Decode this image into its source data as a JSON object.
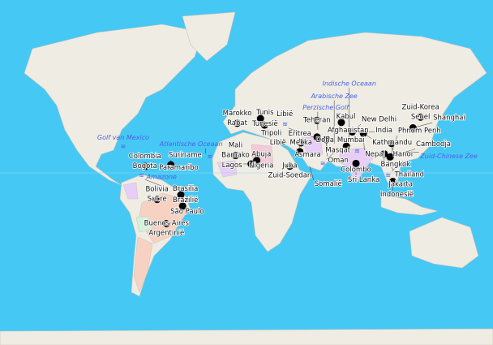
{
  "colors": {
    "ocean": "#46c8f5",
    "land": "#efece4",
    "marker": "#000000",
    "sea_label": "#4a63e8",
    "highlight_pink": "#f4c9d8",
    "highlight_salmon": "#f7d2c2",
    "highlight_purple": "#e8cdf7",
    "highlight_green": "#d4f2dd"
  },
  "markers": [
    {
      "name": "Rabat",
      "country": "Marokko",
      "lon": -6.8,
      "lat": 34.0
    },
    {
      "name": "Tunis",
      "country": "Tunesië",
      "lon": 10.2,
      "lat": 36.8
    },
    {
      "name": "Tripoli",
      "country": "Libië",
      "lon": 13.2,
      "lat": 32.9
    },
    {
      "name": "Bamako",
      "country": "Mali",
      "lon": -8.0,
      "lat": 12.6
    },
    {
      "name": "Abuja",
      "country": "Nigeria",
      "lon": 7.5,
      "lat": 9.1
    },
    {
      "name": "Lagos",
      "country": "",
      "lon": 3.4,
      "lat": 6.5
    },
    {
      "name": "Juba",
      "country": "Zuid-Soedan",
      "lon": 31.6,
      "lat": 4.9
    },
    {
      "name": "Mekka",
      "country": "",
      "lon": 39.8,
      "lat": 21.4
    },
    {
      "name": "Asmara",
      "country": "Eritrea",
      "lon": 38.9,
      "lat": 15.3
    },
    {
      "name": "Teheran",
      "country": "",
      "lon": 51.4,
      "lat": 35.7
    },
    {
      "name": "Kabul",
      "country": "Afghanistan",
      "lon": 69.2,
      "lat": 34.5
    },
    {
      "name": "Doha",
      "country": "",
      "lon": 51.5,
      "lat": 25.3
    },
    {
      "name": "Masqat",
      "country": "Oman",
      "lon": 58.4,
      "lat": 23.6
    },
    {
      "name": "Mumbai",
      "country": "",
      "lon": 72.9,
      "lat": 19.1
    },
    {
      "name": "New Delhi",
      "country": "India",
      "lon": 77.2,
      "lat": 28.6
    },
    {
      "name": "Kathmandu",
      "country": "Nepal",
      "lon": 85.3,
      "lat": 27.7
    },
    {
      "name": "Colombo",
      "country": "Sri Lanka",
      "lon": 79.9,
      "lat": 6.9
    },
    {
      "name": "Hanoi",
      "country": "",
      "lon": 105.8,
      "lat": 21.0
    },
    {
      "name": "Bangkok",
      "country": "Thailand",
      "lon": 100.5,
      "lat": 13.8
    },
    {
      "name": "Phnom Penh",
      "country": "Cambodja",
      "lon": 104.9,
      "lat": 11.6
    },
    {
      "name": "Seoel",
      "country": "Zuid-Korea",
      "lon": 127.0,
      "lat": 37.6
    },
    {
      "name": "Shanghai",
      "country": "",
      "lon": 121.5,
      "lat": 31.2
    },
    {
      "name": "Jakarta",
      "country": "Indonesië",
      "lon": 106.8,
      "lat": -6.2
    },
    {
      "name": "Bogota",
      "country": "Colombia",
      "lon": -74.1,
      "lat": 4.7
    },
    {
      "name": "Paramaribo",
      "country": "Suriname",
      "lon": -55.2,
      "lat": 5.9
    },
    {
      "name": "Sucre",
      "country": "Bolivia",
      "lon": -65.3,
      "lat": -19.0
    },
    {
      "name": "Brasilia",
      "country": "Brazilië",
      "lon": -47.9,
      "lat": -15.8
    },
    {
      "name": "São Paulo",
      "country": "",
      "lon": -46.6,
      "lat": -23.5
    },
    {
      "name": "Buenos Aires",
      "country": "Argentinië",
      "lon": -58.4,
      "lat": -34.6
    }
  ],
  "country_labels": [
    {
      "name": "Libië",
      "lon": 18,
      "lat": 27
    },
    {
      "name": "Somalië",
      "lon": 46,
      "lat": 5
    }
  ],
  "sea_labels": [
    {
      "name": "Golf van Mexico",
      "lon": -90,
      "lat": 25
    },
    {
      "name": "Atlantische Oceaan",
      "lon": -30,
      "lat": 14
    },
    {
      "name": "Amazone",
      "lon": -62,
      "lat": -3
    },
    {
      "name": "Perzische Golf",
      "lon": 52,
      "lat": 30
    },
    {
      "name": "Arabische Zee",
      "lon": 64,
      "lat": 21
    },
    {
      "name": "Indische Oceaan",
      "lon": 75,
      "lat": 24
    },
    {
      "name": "Zuid-Chinese Zee",
      "lon": 114,
      "lat": 15
    }
  ]
}
